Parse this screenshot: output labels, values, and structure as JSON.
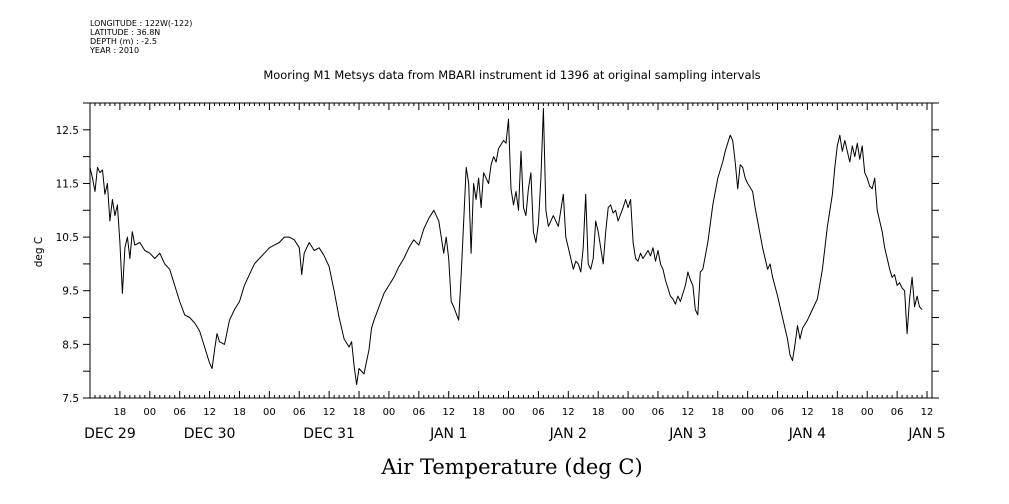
{
  "header": {
    "longitude": "LONGITUDE : 122W(-122)",
    "latitude": "LATITUDE : 36.8N",
    "depth": "DEPTH (m) : -2.5",
    "year": "YEAR : 2010"
  },
  "chart_data": {
    "type": "line",
    "title": "Mooring M1 Metsys data from MBARI instrument id 1396 at original sampling intervals",
    "xlabel": "Air Temperature (deg C)",
    "ylabel": "deg C",
    "ylim": [
      7.5,
      13
    ],
    "yticks": [
      "7.5",
      "8.5",
      "9.5",
      "10.5",
      "11.5",
      "12.5"
    ],
    "x_units": "hours since 2010-12-29 12:00",
    "xlim": [
      0,
      169
    ],
    "hour_ticks": [
      {
        "x": 6,
        "label": "18"
      },
      {
        "x": 12,
        "label": "00"
      },
      {
        "x": 18,
        "label": "06"
      },
      {
        "x": 24,
        "label": "12"
      },
      {
        "x": 30,
        "label": "18"
      },
      {
        "x": 36,
        "label": "00"
      },
      {
        "x": 42,
        "label": "06"
      },
      {
        "x": 48,
        "label": "12"
      },
      {
        "x": 54,
        "label": "18"
      },
      {
        "x": 60,
        "label": "00"
      },
      {
        "x": 66,
        "label": "06"
      },
      {
        "x": 72,
        "label": "12"
      },
      {
        "x": 78,
        "label": "18"
      },
      {
        "x": 84,
        "label": "00"
      },
      {
        "x": 90,
        "label": "06"
      },
      {
        "x": 96,
        "label": "12"
      },
      {
        "x": 102,
        "label": "18"
      },
      {
        "x": 108,
        "label": "00"
      },
      {
        "x": 114,
        "label": "06"
      },
      {
        "x": 120,
        "label": "12"
      },
      {
        "x": 126,
        "label": "18"
      },
      {
        "x": 132,
        "label": "00"
      },
      {
        "x": 138,
        "label": "06"
      },
      {
        "x": 144,
        "label": "12"
      },
      {
        "x": 150,
        "label": "18"
      },
      {
        "x": 156,
        "label": "00"
      },
      {
        "x": 162,
        "label": "06"
      },
      {
        "x": 168,
        "label": "12"
      }
    ],
    "date_labels": [
      {
        "x": 4,
        "label": "DEC 29"
      },
      {
        "x": 24,
        "label": "DEC 30"
      },
      {
        "x": 48,
        "label": "DEC 31"
      },
      {
        "x": 72,
        "label": "JAN  1"
      },
      {
        "x": 96,
        "label": "JAN  2"
      },
      {
        "x": 120,
        "label": "JAN  3"
      },
      {
        "x": 144,
        "label": "JAN  4"
      },
      {
        "x": 168,
        "label": "JAN  5"
      }
    ],
    "series": [
      {
        "color": "#000000",
        "points": [
          [
            0.0,
            11.8
          ],
          [
            0.5,
            11.6
          ],
          [
            1.0,
            11.35
          ],
          [
            1.5,
            11.8
          ],
          [
            2.0,
            11.7
          ],
          [
            2.5,
            11.75
          ],
          [
            3.0,
            11.3
          ],
          [
            3.5,
            11.5
          ],
          [
            4.0,
            10.8
          ],
          [
            4.5,
            11.2
          ],
          [
            5.0,
            10.9
          ],
          [
            5.5,
            11.1
          ],
          [
            6.0,
            10.4
          ],
          [
            6.5,
            9.45
          ],
          [
            7.0,
            10.3
          ],
          [
            7.5,
            10.5
          ],
          [
            8.0,
            10.1
          ],
          [
            8.5,
            10.6
          ],
          [
            9.0,
            10.35
          ],
          [
            10.0,
            10.4
          ],
          [
            11.0,
            10.25
          ],
          [
            12.0,
            10.2
          ],
          [
            13.0,
            10.1
          ],
          [
            14.0,
            10.2
          ],
          [
            15.0,
            10.0
          ],
          [
            16.0,
            9.9
          ],
          [
            17.0,
            9.6
          ],
          [
            18.0,
            9.3
          ],
          [
            19.0,
            9.05
          ],
          [
            20.0,
            9.0
          ],
          [
            21.0,
            8.9
          ],
          [
            22.0,
            8.75
          ],
          [
            23.0,
            8.45
          ],
          [
            24.0,
            8.15
          ],
          [
            24.5,
            8.05
          ],
          [
            25.0,
            8.4
          ],
          [
            25.5,
            8.7
          ],
          [
            26.0,
            8.55
          ],
          [
            27.0,
            8.5
          ],
          [
            28.0,
            8.95
          ],
          [
            29.0,
            9.15
          ],
          [
            30.0,
            9.3
          ],
          [
            31.0,
            9.6
          ],
          [
            32.0,
            9.8
          ],
          [
            33.0,
            10.0
          ],
          [
            34.0,
            10.1
          ],
          [
            35.0,
            10.2
          ],
          [
            36.0,
            10.3
          ],
          [
            37.0,
            10.35
          ],
          [
            38.0,
            10.4
          ],
          [
            39.0,
            10.5
          ],
          [
            40.0,
            10.5
          ],
          [
            41.0,
            10.45
          ],
          [
            42.0,
            10.3
          ],
          [
            42.5,
            9.8
          ],
          [
            43.0,
            10.2
          ],
          [
            44.0,
            10.4
          ],
          [
            45.0,
            10.25
          ],
          [
            46.0,
            10.3
          ],
          [
            47.0,
            10.15
          ],
          [
            48.0,
            9.95
          ],
          [
            49.0,
            9.5
          ],
          [
            50.0,
            9.0
          ],
          [
            51.0,
            8.6
          ],
          [
            52.0,
            8.45
          ],
          [
            52.5,
            8.55
          ],
          [
            53.0,
            8.1
          ],
          [
            53.5,
            7.75
          ],
          [
            54.0,
            8.05
          ],
          [
            55.0,
            7.95
          ],
          [
            56.0,
            8.4
          ],
          [
            56.5,
            8.8
          ],
          [
            57.0,
            8.95
          ],
          [
            58.0,
            9.2
          ],
          [
            59.0,
            9.45
          ],
          [
            60.0,
            9.6
          ],
          [
            61.0,
            9.75
          ],
          [
            62.0,
            9.95
          ],
          [
            63.0,
            10.1
          ],
          [
            64.0,
            10.3
          ],
          [
            65.0,
            10.45
          ],
          [
            66.0,
            10.35
          ],
          [
            67.0,
            10.65
          ],
          [
            68.0,
            10.85
          ],
          [
            69.0,
            11.0
          ],
          [
            70.0,
            10.8
          ],
          [
            71.0,
            10.2
          ],
          [
            71.5,
            10.5
          ],
          [
            72.0,
            10.1
          ],
          [
            72.5,
            9.3
          ],
          [
            73.0,
            9.2
          ],
          [
            74.0,
            8.95
          ],
          [
            74.5,
            9.8
          ],
          [
            75.0,
            10.8
          ],
          [
            75.5,
            11.8
          ],
          [
            76.0,
            11.5
          ],
          [
            76.5,
            10.2
          ],
          [
            77.0,
            11.5
          ],
          [
            77.5,
            11.2
          ],
          [
            78.0,
            11.6
          ],
          [
            78.5,
            11.05
          ],
          [
            79.0,
            11.7
          ],
          [
            80.0,
            11.5
          ],
          [
            80.5,
            11.85
          ],
          [
            81.0,
            12.0
          ],
          [
            81.5,
            11.9
          ],
          [
            82.0,
            12.15
          ],
          [
            83.0,
            12.3
          ],
          [
            83.5,
            12.25
          ],
          [
            84.0,
            12.7
          ],
          [
            84.5,
            11.4
          ],
          [
            85.0,
            11.1
          ],
          [
            85.5,
            11.35
          ],
          [
            86.0,
            11.0
          ],
          [
            86.5,
            12.1
          ],
          [
            87.0,
            11.05
          ],
          [
            87.5,
            10.9
          ],
          [
            88.0,
            11.4
          ],
          [
            88.5,
            11.7
          ],
          [
            89.0,
            10.6
          ],
          [
            89.5,
            10.4
          ],
          [
            90.0,
            10.75
          ],
          [
            90.5,
            11.6
          ],
          [
            91.0,
            12.9
          ],
          [
            91.5,
            11.0
          ],
          [
            92.0,
            10.7
          ],
          [
            93.0,
            10.9
          ],
          [
            94.0,
            10.7
          ],
          [
            95.0,
            11.3
          ],
          [
            95.5,
            10.5
          ],
          [
            96.0,
            10.3
          ],
          [
            96.5,
            10.1
          ],
          [
            97.0,
            9.9
          ],
          [
            97.5,
            10.05
          ],
          [
            98.0,
            10.0
          ],
          [
            98.5,
            9.85
          ],
          [
            99.0,
            10.3
          ],
          [
            99.5,
            11.3
          ],
          [
            100.0,
            10.0
          ],
          [
            100.5,
            9.9
          ],
          [
            101.0,
            10.1
          ],
          [
            101.5,
            10.8
          ],
          [
            102.0,
            10.6
          ],
          [
            102.5,
            10.3
          ],
          [
            103.0,
            10.0
          ],
          [
            103.5,
            10.6
          ],
          [
            104.0,
            11.05
          ],
          [
            104.5,
            11.1
          ],
          [
            105.0,
            10.95
          ],
          [
            105.5,
            11.0
          ],
          [
            106.0,
            10.8
          ],
          [
            107.0,
            11.05
          ],
          [
            107.5,
            11.2
          ],
          [
            108.0,
            11.05
          ],
          [
            108.5,
            11.2
          ],
          [
            109.0,
            10.4
          ],
          [
            109.5,
            10.1
          ],
          [
            110.0,
            10.05
          ],
          [
            110.5,
            10.2
          ],
          [
            111.0,
            10.1
          ],
          [
            112.0,
            10.25
          ],
          [
            112.5,
            10.15
          ],
          [
            113.0,
            10.3
          ],
          [
            113.5,
            10.05
          ],
          [
            114.0,
            10.25
          ],
          [
            114.5,
            10.0
          ],
          [
            115.0,
            9.9
          ],
          [
            115.5,
            9.7
          ],
          [
            116.0,
            9.55
          ],
          [
            116.5,
            9.4
          ],
          [
            117.0,
            9.35
          ],
          [
            117.5,
            9.25
          ],
          [
            118.0,
            9.4
          ],
          [
            118.5,
            9.3
          ],
          [
            119.0,
            9.45
          ],
          [
            119.5,
            9.6
          ],
          [
            120.0,
            9.85
          ],
          [
            120.5,
            9.7
          ],
          [
            121.0,
            9.6
          ],
          [
            121.5,
            9.15
          ],
          [
            122.0,
            9.05
          ],
          [
            122.5,
            9.85
          ],
          [
            123.0,
            9.9
          ],
          [
            124.0,
            10.4
          ],
          [
            125.0,
            11.1
          ],
          [
            126.0,
            11.6
          ],
          [
            127.0,
            11.9
          ],
          [
            127.5,
            12.1
          ],
          [
            128.0,
            12.25
          ],
          [
            128.5,
            12.4
          ],
          [
            129.0,
            12.3
          ],
          [
            129.5,
            11.9
          ],
          [
            130.0,
            11.4
          ],
          [
            130.5,
            11.85
          ],
          [
            131.0,
            11.8
          ],
          [
            131.5,
            11.6
          ],
          [
            132.0,
            11.5
          ],
          [
            133.0,
            11.35
          ],
          [
            133.5,
            11.05
          ],
          [
            134.0,
            10.8
          ],
          [
            135.0,
            10.3
          ],
          [
            135.5,
            10.1
          ],
          [
            136.0,
            9.9
          ],
          [
            136.5,
            10.0
          ],
          [
            137.0,
            9.75
          ],
          [
            138.0,
            9.4
          ],
          [
            139.0,
            9.0
          ],
          [
            140.0,
            8.6
          ],
          [
            140.5,
            8.3
          ],
          [
            141.0,
            8.2
          ],
          [
            141.5,
            8.5
          ],
          [
            142.0,
            8.85
          ],
          [
            142.5,
            8.6
          ],
          [
            143.0,
            8.8
          ],
          [
            144.0,
            8.95
          ],
          [
            145.0,
            9.15
          ],
          [
            146.0,
            9.35
          ],
          [
            147.0,
            9.9
          ],
          [
            148.0,
            10.7
          ],
          [
            149.0,
            11.3
          ],
          [
            149.5,
            11.8
          ],
          [
            150.0,
            12.2
          ],
          [
            150.5,
            12.4
          ],
          [
            151.0,
            12.1
          ],
          [
            151.5,
            12.3
          ],
          [
            152.0,
            12.1
          ],
          [
            152.5,
            11.9
          ],
          [
            153.0,
            12.2
          ],
          [
            153.5,
            12.0
          ],
          [
            154.0,
            12.25
          ],
          [
            154.5,
            11.95
          ],
          [
            155.0,
            12.2
          ],
          [
            155.5,
            11.7
          ],
          [
            156.0,
            11.6
          ],
          [
            156.5,
            11.45
          ],
          [
            157.0,
            11.4
          ],
          [
            157.5,
            11.6
          ],
          [
            158.0,
            11.0
          ],
          [
            158.5,
            10.8
          ],
          [
            159.0,
            10.6
          ],
          [
            159.5,
            10.3
          ],
          [
            160.0,
            10.1
          ],
          [
            160.5,
            9.9
          ],
          [
            161.0,
            9.75
          ],
          [
            161.5,
            9.8
          ],
          [
            162.0,
            9.6
          ],
          [
            162.5,
            9.65
          ],
          [
            163.0,
            9.55
          ],
          [
            163.5,
            9.5
          ],
          [
            164.0,
            8.7
          ],
          [
            164.5,
            9.35
          ],
          [
            165.0,
            9.75
          ],
          [
            165.5,
            9.2
          ],
          [
            166.0,
            9.4
          ],
          [
            166.5,
            9.2
          ],
          [
            167.0,
            9.15
          ]
        ]
      }
    ]
  }
}
